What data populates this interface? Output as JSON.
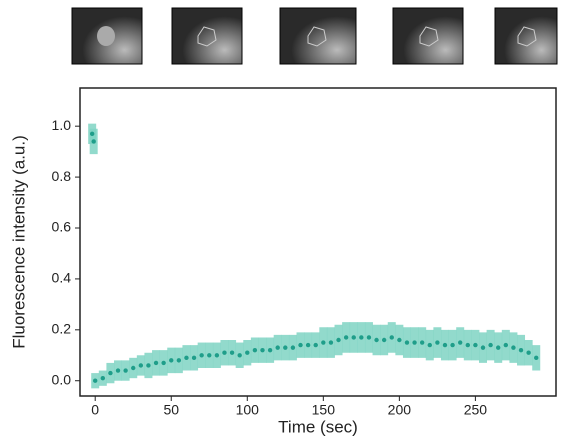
{
  "chart_data": {
    "type": "scatter",
    "x_label": "Time (sec)",
    "y_label": "Fluorescence intensity (a.u.)",
    "xlim": [
      -10,
      303
    ],
    "ylim": [
      -0.06,
      1.15
    ],
    "xticks": [
      0,
      50,
      100,
      150,
      200,
      250
    ],
    "yticks": [
      {
        "value": 0,
        "label": "0.0"
      },
      0.2,
      0.4,
      0.6,
      0.8,
      {
        "value": 1,
        "label": "1.0"
      }
    ],
    "color": "#1f9e8a",
    "error_color": "#7fd3c3",
    "series": [
      {
        "x": [
          -2,
          -1
        ],
        "values": [
          0.97,
          0.94
        ],
        "errors": [
          0.04,
          0.05
        ]
      },
      {
        "x": [
          0,
          5,
          10,
          15,
          20,
          25,
          30,
          35,
          40,
          45,
          50,
          55,
          60,
          65,
          70,
          75,
          80,
          85,
          90,
          95,
          100,
          105,
          110,
          115,
          120,
          125,
          130,
          135,
          140,
          145,
          150,
          155,
          160,
          165,
          170,
          175,
          180,
          185,
          190,
          195,
          200,
          205,
          210,
          215,
          220,
          225,
          230,
          235,
          240,
          245,
          250,
          255,
          260,
          265,
          270,
          275,
          280,
          285,
          290
        ],
        "values": [
          0.0,
          0.01,
          0.03,
          0.04,
          0.04,
          0.05,
          0.06,
          0.06,
          0.07,
          0.07,
          0.08,
          0.08,
          0.09,
          0.09,
          0.1,
          0.1,
          0.1,
          0.11,
          0.11,
          0.1,
          0.11,
          0.12,
          0.12,
          0.12,
          0.13,
          0.13,
          0.13,
          0.14,
          0.14,
          0.14,
          0.15,
          0.15,
          0.16,
          0.17,
          0.17,
          0.17,
          0.17,
          0.16,
          0.16,
          0.17,
          0.16,
          0.15,
          0.15,
          0.15,
          0.14,
          0.15,
          0.14,
          0.14,
          0.15,
          0.14,
          0.14,
          0.13,
          0.14,
          0.13,
          0.14,
          0.13,
          0.12,
          0.11,
          0.09
        ],
        "errors": [
          0.03,
          0.03,
          0.04,
          0.04,
          0.04,
          0.04,
          0.04,
          0.05,
          0.05,
          0.05,
          0.05,
          0.05,
          0.05,
          0.05,
          0.05,
          0.05,
          0.05,
          0.05,
          0.05,
          0.05,
          0.05,
          0.05,
          0.05,
          0.05,
          0.05,
          0.05,
          0.05,
          0.05,
          0.05,
          0.05,
          0.06,
          0.06,
          0.06,
          0.06,
          0.06,
          0.06,
          0.06,
          0.06,
          0.06,
          0.06,
          0.06,
          0.06,
          0.06,
          0.06,
          0.06,
          0.06,
          0.06,
          0.06,
          0.06,
          0.06,
          0.06,
          0.06,
          0.06,
          0.06,
          0.06,
          0.06,
          0.06,
          0.05,
          0.05
        ]
      }
    ]
  }
}
